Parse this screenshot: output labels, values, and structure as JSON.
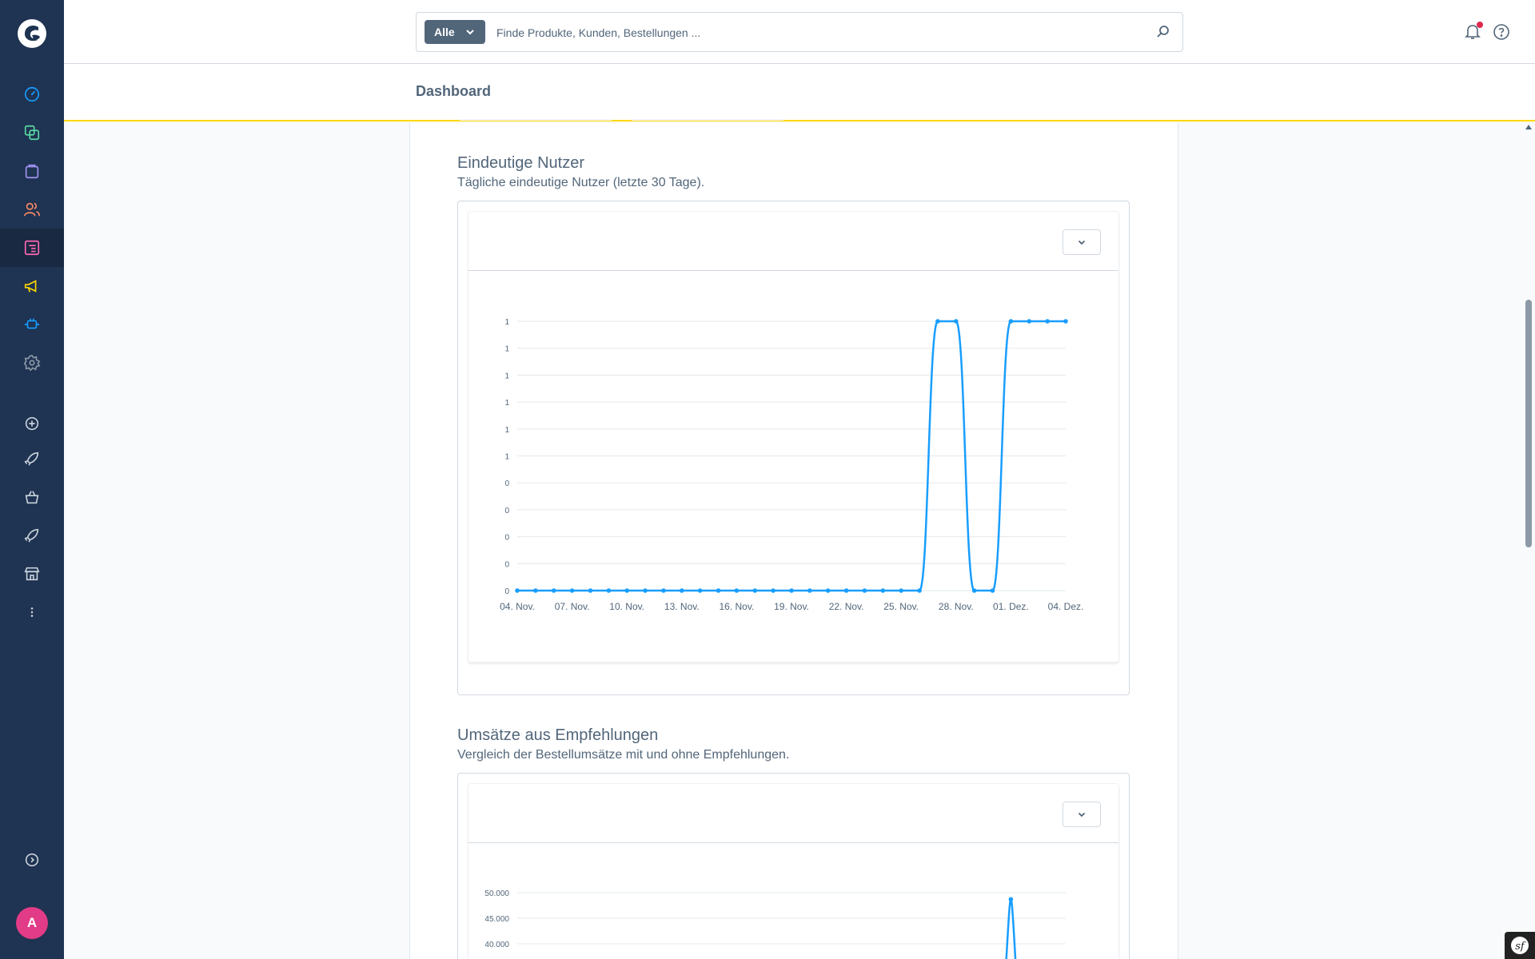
{
  "header": {
    "search_type": "Alle",
    "search_placeholder": "Finde Produkte, Kunden, Bestellungen ..."
  },
  "page": {
    "title": "Dashboard"
  },
  "sidebar": {
    "avatar_initial": "A",
    "icons": [
      "dashboard-icon",
      "catalog-icon",
      "orders-icon",
      "customers-icon",
      "content-icon",
      "marketing-icon",
      "extensions-icon",
      "settings-icon",
      "add-icon",
      "rocket-icon",
      "basket-icon",
      "rocket-icon",
      "store-icon",
      "more-icon",
      "expand-icon"
    ]
  },
  "sections": [
    {
      "title": "Eindeutige Nutzer",
      "subtitle": "Tägliche eindeutige Nutzer (letzte 30 Tage)."
    },
    {
      "title": "Umsätze aus Empfehlungen",
      "subtitle": "Vergleich der Bestellumsätze mit und ohne Empfehlungen."
    }
  ],
  "chart_data": [
    {
      "type": "line",
      "color": "#189eff",
      "x_tick_labels": [
        "04. Nov.",
        "07. Nov.",
        "10. Nov.",
        "13. Nov.",
        "16. Nov.",
        "19. Nov.",
        "22. Nov.",
        "25. Nov.",
        "28. Nov.",
        "01. Dez.",
        "04. Dez."
      ],
      "y_tick_labels": [
        "0",
        "0",
        "0",
        "0",
        "0",
        "1",
        "1",
        "1",
        "1",
        "1",
        "1"
      ],
      "ylim": [
        0,
        1
      ],
      "x": [
        "04. Nov.",
        "05. Nov.",
        "06. Nov.",
        "07. Nov.",
        "08. Nov.",
        "09. Nov.",
        "10. Nov.",
        "11. Nov.",
        "12. Nov.",
        "13. Nov.",
        "14. Nov.",
        "15. Nov.",
        "16. Nov.",
        "17. Nov.",
        "18. Nov.",
        "19. Nov.",
        "20. Nov.",
        "21. Nov.",
        "22. Nov.",
        "23. Nov.",
        "24. Nov.",
        "25. Nov.",
        "26. Nov.",
        "27. Nov.",
        "28. Nov.",
        "29. Nov.",
        "30. Nov.",
        "01. Dez.",
        "02. Dez.",
        "03. Dez.",
        "04. Dez."
      ],
      "values": [
        0,
        0,
        0,
        0,
        0,
        0,
        0,
        0,
        0,
        0,
        0,
        0,
        0,
        0,
        0,
        0,
        0,
        0,
        0,
        0,
        0,
        0,
        0,
        1,
        1,
        0,
        0,
        1,
        1,
        1,
        1
      ],
      "grid": true
    },
    {
      "type": "line",
      "color": "#189eff",
      "y_tick_labels": [
        "50.000",
        "45.000",
        "40.000"
      ],
      "ylim_visible": [
        40000,
        50000
      ],
      "visible_peak": {
        "x_index": 27,
        "value": 48700
      },
      "grid": true
    }
  ]
}
